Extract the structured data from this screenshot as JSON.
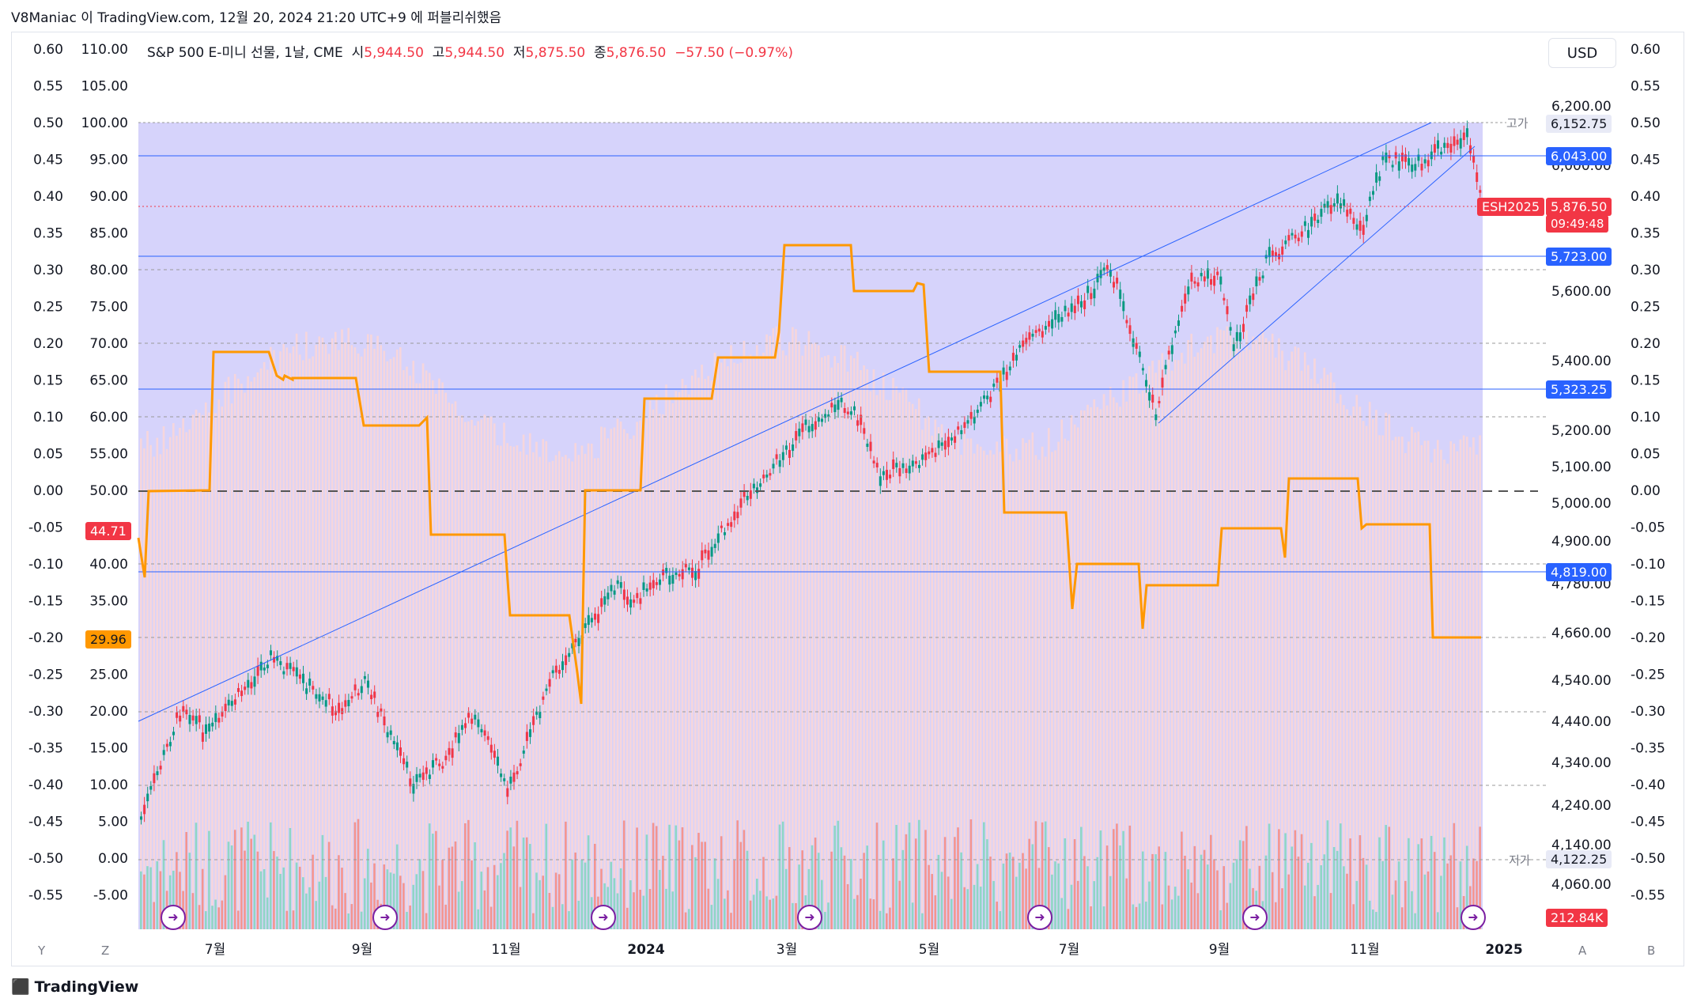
{
  "header": {
    "author_line": "V8Maniac 이 TradingView.com, 12월 20, 2024 21:20 UTC+9 에 퍼블리쉬했음"
  },
  "legend": {
    "symbol": "S&P 500 E-미니 선물, 1날, CME",
    "open_label": "시",
    "open": "5,944.50",
    "high_label": "고",
    "high": "5,944.50",
    "low_label": "저",
    "low": "5,875.50",
    "close_label": "종",
    "close": "5,876.50",
    "change": "−57.50 (−0.97%)"
  },
  "currency_button": "USD",
  "left_axis_1": [
    "0.60",
    "0.55",
    "0.50",
    "0.45",
    "0.40",
    "0.35",
    "0.30",
    "0.25",
    "0.20",
    "0.15",
    "0.10",
    "0.05",
    "0.00",
    "-0.05",
    "-0.10",
    "-0.15",
    "-0.20",
    "-0.25",
    "-0.30",
    "-0.35",
    "-0.40",
    "-0.45",
    "-0.50",
    "-0.55"
  ],
  "left_axis_2": [
    "110.00",
    "105.00",
    "100.00",
    "95.00",
    "90.00",
    "85.00",
    "80.00",
    "75.00",
    "70.00",
    "65.00",
    "60.00",
    "55.00",
    "50.00",
    "45.00",
    "40.00",
    "35.00",
    "30.00",
    "25.00",
    "20.00",
    "15.00",
    "10.00",
    "5.00",
    "0.00",
    "-5.00"
  ],
  "right_axis_oscillator": [
    "0.60",
    "0.55",
    "0.50",
    "0.45",
    "0.40",
    "0.35",
    "0.30",
    "0.25",
    "0.20",
    "0.15",
    "0.10",
    "0.05",
    "0.00",
    "-0.05",
    "-0.10",
    "-0.15",
    "-0.20",
    "-0.25",
    "-0.30",
    "-0.35",
    "-0.40",
    "-0.45",
    "-0.50",
    "-0.55"
  ],
  "right_axis_price": [
    "6,200.00",
    "6,000.00",
    "5,600.00",
    "5,400.00",
    "5,200.00",
    "5,100.00",
    "5,000.00",
    "4,900.00",
    "4,780.00",
    "4,660.00",
    "4,540.00",
    "4,440.00",
    "4,340.00",
    "4,240.00",
    "4,140.00",
    "4,060.00"
  ],
  "price_tags": {
    "high_label": "고가",
    "high_value": "6,152.75",
    "level_6043": "6,043.00",
    "symbol_tag": "ESH2025",
    "last_price": "5,876.50",
    "countdown": "09:49:48",
    "level_5723": "5,723.00",
    "level_5323": "5,323.25",
    "level_4819": "4,819.00",
    "low_label": "저가",
    "low_value": "4,122.25",
    "volume": "212.84K"
  },
  "left_tags": {
    "rsi_value": "44.71",
    "orange_value": "29.96"
  },
  "time_axis": [
    "7월",
    "9월",
    "11월",
    "2024",
    "3월",
    "5월",
    "7월",
    "9월",
    "11월",
    "2025"
  ],
  "bottom_buttons": {
    "y": "Y",
    "z": "Z",
    "a": "A",
    "b": "B"
  },
  "footer_logo": "TradingView",
  "colors": {
    "up": "#089981",
    "down": "#f23645",
    "orange": "#ff9800",
    "band": "#d6d3fb",
    "blue_line": "#2962ff"
  }
}
